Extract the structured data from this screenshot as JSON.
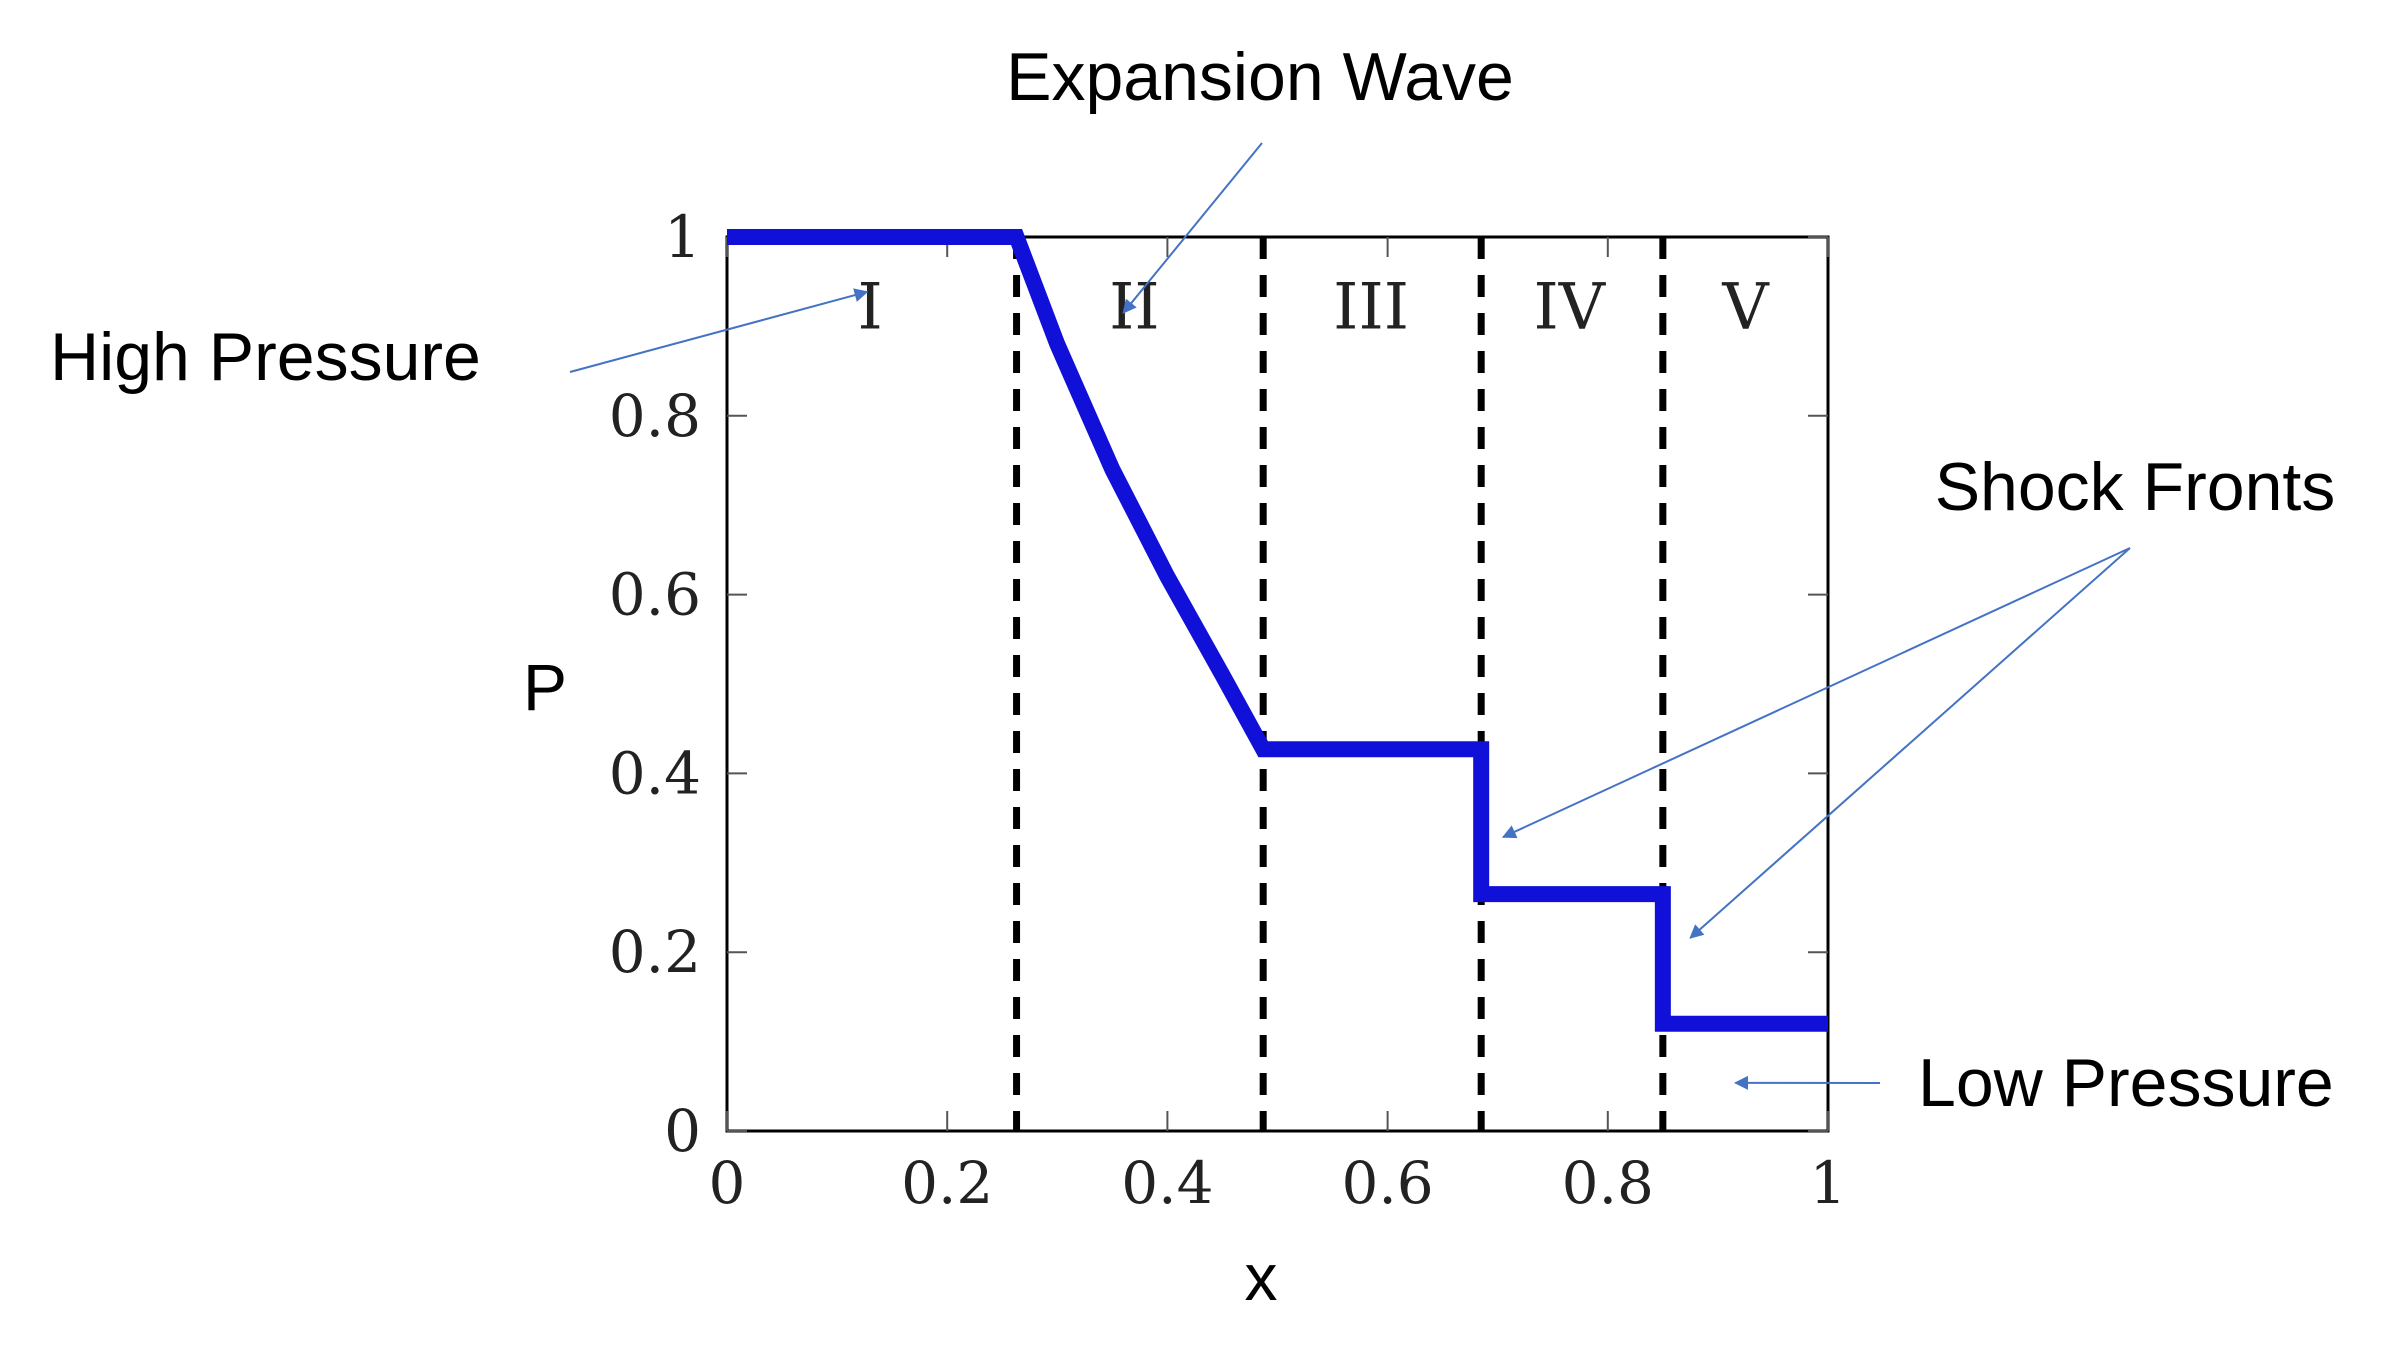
{
  "chart_data": {
    "type": "line",
    "xlabel": "x",
    "ylabel": "P",
    "xlim": [
      0,
      1
    ],
    "ylim": [
      0,
      1
    ],
    "x_ticks": [
      "0",
      "0.2",
      "0.4",
      "0.6",
      "0.8",
      "1"
    ],
    "y_ticks": [
      "0",
      "0.2",
      "0.4",
      "0.6",
      "0.8",
      "1"
    ],
    "x_tick_values": [
      0,
      0.2,
      0.4,
      0.6,
      0.8,
      1
    ],
    "y_tick_values": [
      0,
      0.2,
      0.4,
      0.6,
      0.8,
      1
    ],
    "series": [
      {
        "color": "#1010d8",
        "x": [
          0,
          0.263,
          0.3,
          0.35,
          0.4,
          0.45,
          0.487,
          0.685,
          0.685,
          0.85,
          0.85,
          1.0
        ],
        "y": [
          1.0,
          1.0,
          0.88,
          0.74,
          0.62,
          0.51,
          0.427,
          0.427,
          0.265,
          0.265,
          0.12,
          0.12
        ]
      }
    ],
    "boundaries": [
      0.263,
      0.487,
      0.685,
      0.85
    ],
    "regions": [
      {
        "label": "I",
        "x": 0.13,
        "y": 0.92
      },
      {
        "label": "II",
        "x": 0.37,
        "y": 0.92
      },
      {
        "label": "III",
        "x": 0.585,
        "y": 0.92
      },
      {
        "label": "IV",
        "x": 0.765,
        "y": 0.92
      },
      {
        "label": "V",
        "x": 0.925,
        "y": 0.92
      }
    ],
    "annotations": [
      {
        "text": "Expansion Wave",
        "points_to": {
          "x": 0.36,
          "y": 0.96
        }
      },
      {
        "text": "High Pressure",
        "points_to": {
          "x": 0.1,
          "y": 0.97
        }
      },
      {
        "text": "Shock Fronts",
        "points_to": [
          {
            "x": 0.705,
            "y": 0.34
          },
          {
            "x": 0.875,
            "y": 0.225
          }
        ]
      },
      {
        "text": "Low Pressure",
        "points_to": {
          "x": 0.925,
          "y": 0.055
        }
      }
    ],
    "colors": {
      "curve": "#1010d8",
      "arrow": "#4472c4",
      "boundary": "#000000",
      "frame": "#000000"
    }
  }
}
